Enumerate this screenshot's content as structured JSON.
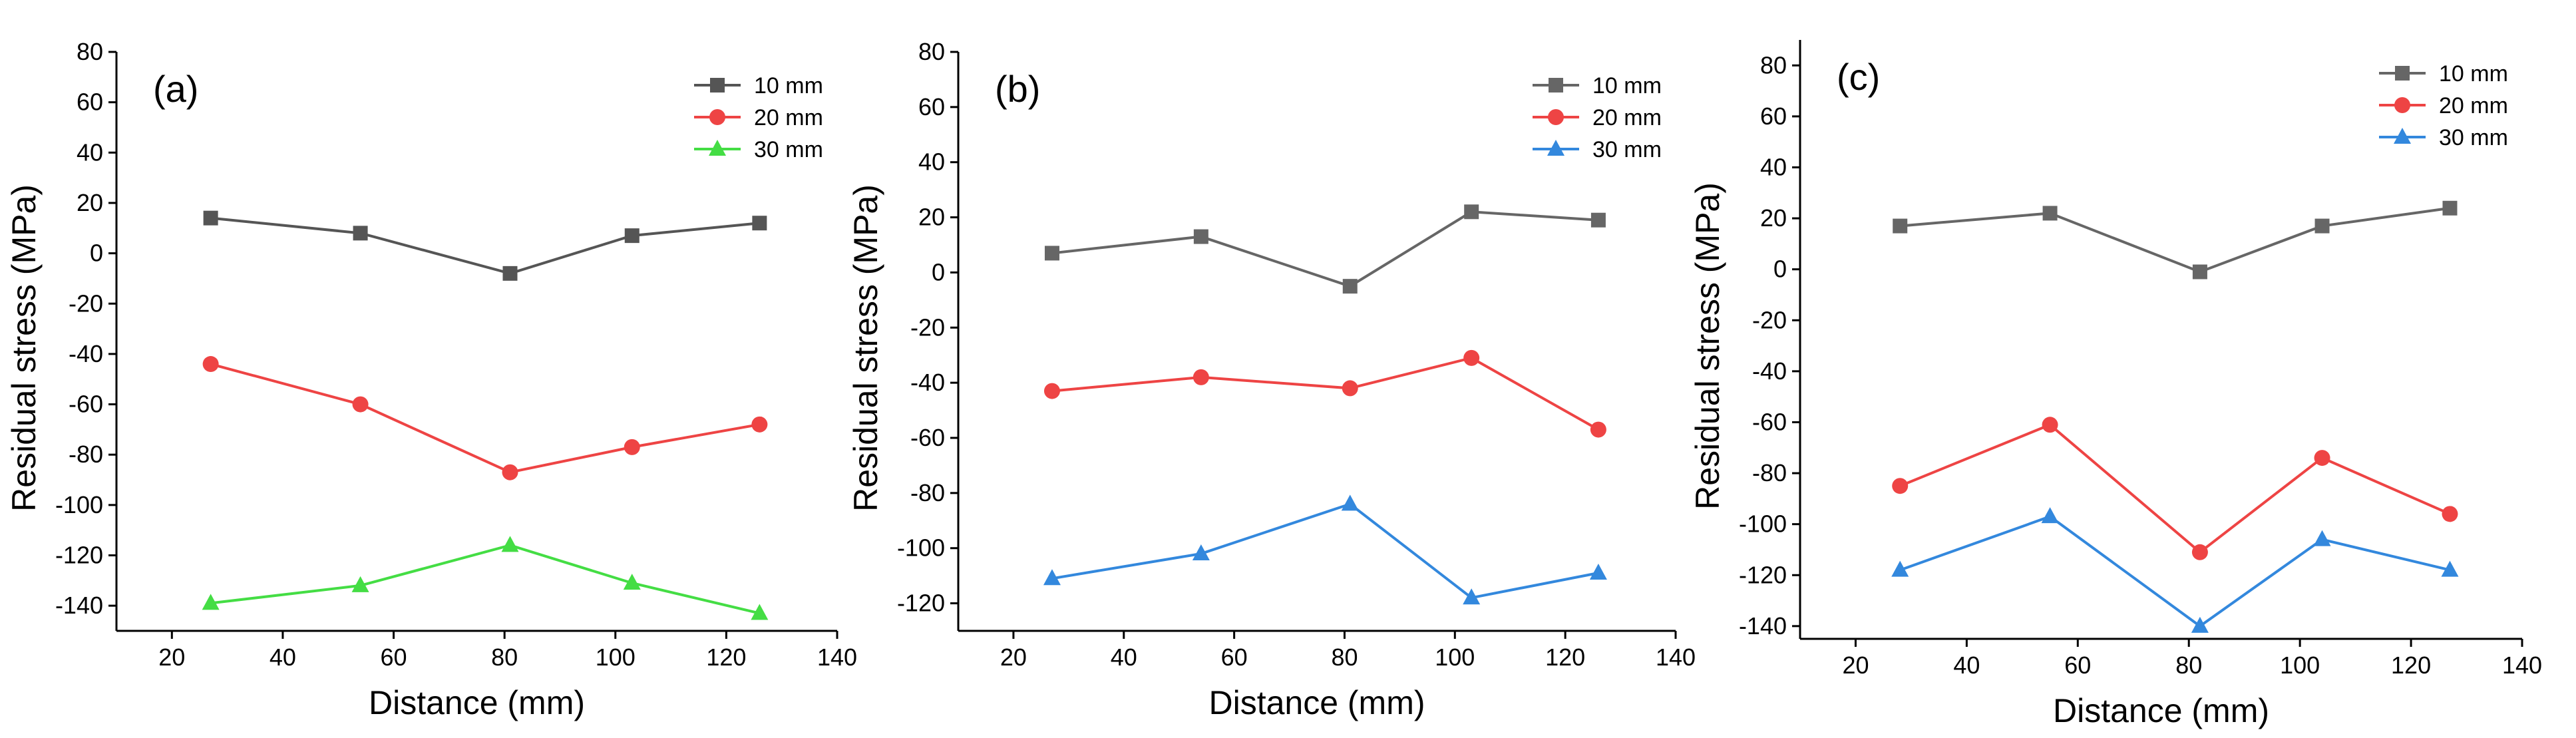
{
  "chart_data": [
    {
      "type": "line",
      "panel_label": "(a)",
      "xlabel": "Distance (mm)",
      "ylabel": "Residual stress (MPa)",
      "xlim": [
        10,
        140
      ],
      "ylim": [
        -150,
        80
      ],
      "xticks": [
        20,
        40,
        60,
        80,
        100,
        120,
        140
      ],
      "yticks": [
        -140,
        -120,
        -100,
        -80,
        -60,
        -40,
        -20,
        0,
        20,
        40,
        60,
        80
      ],
      "ytick_labels": [
        "-140",
        "-120",
        "-100",
        "-80",
        "-60",
        "-40",
        "-20",
        "0",
        "20",
        "40",
        "60",
        "80"
      ],
      "legend_position": "top-right",
      "series": [
        {
          "name": "10 mm",
          "color": "#555555",
          "marker": "square",
          "x": [
            27,
            54,
            81,
            103,
            126
          ],
          "y": [
            14,
            8,
            -8,
            7,
            12
          ]
        },
        {
          "name": "20 mm",
          "color": "#ee4444",
          "marker": "circle",
          "x": [
            27,
            54,
            81,
            103,
            126
          ],
          "y": [
            -44,
            -60,
            -87,
            -77,
            -68
          ]
        },
        {
          "name": "30 mm",
          "color": "#44dd44",
          "marker": "triangle",
          "x": [
            27,
            54,
            81,
            103,
            126
          ],
          "y": [
            -139,
            -132,
            -116,
            -131,
            -143
          ]
        }
      ]
    },
    {
      "type": "line",
      "panel_label": "(b)",
      "xlabel": "Distance (mm)",
      "ylabel": "Residual stress (MPa)",
      "xlim": [
        10,
        140
      ],
      "ylim": [
        -130,
        80
      ],
      "xticks": [
        20,
        40,
        60,
        80,
        100,
        120,
        140
      ],
      "yticks": [
        -120,
        -100,
        -80,
        -60,
        -40,
        -20,
        0,
        20,
        40,
        60,
        80
      ],
      "ytick_labels": [
        "-120",
        "-100",
        "-80",
        "-60",
        "-40",
        "-20",
        "0",
        "20",
        "40",
        "60",
        "80"
      ],
      "legend_position": "top-right",
      "series": [
        {
          "name": "10 mm",
          "color": "#666666",
          "marker": "square",
          "x": [
            27,
            54,
            81,
            103,
            126
          ],
          "y": [
            7,
            13,
            -5,
            22,
            19
          ]
        },
        {
          "name": "20 mm",
          "color": "#ee4444",
          "marker": "circle",
          "x": [
            27,
            54,
            81,
            103,
            126
          ],
          "y": [
            -43,
            -38,
            -42,
            -31,
            -57
          ]
        },
        {
          "name": "30 mm",
          "color": "#3388dd",
          "marker": "triangle",
          "x": [
            27,
            54,
            81,
            103,
            126
          ],
          "y": [
            -111,
            -102,
            -84,
            -118,
            -109
          ]
        }
      ]
    },
    {
      "type": "line",
      "panel_label": "(c)",
      "xlabel": "Distance (mm)",
      "ylabel": "Residual stress (MPa)",
      "xlim": [
        10,
        140
      ],
      "ylim": [
        -145,
        90
      ],
      "xticks": [
        20,
        40,
        60,
        80,
        100,
        120,
        140
      ],
      "yticks": [
        -140,
        -120,
        -100,
        -80,
        -60,
        -40,
        -20,
        0,
        20,
        40,
        60,
        80
      ],
      "ytick_labels": [
        "-140",
        "-120",
        "-100",
        "-80",
        "-60",
        "-40",
        "-20",
        "0",
        "20",
        "40",
        "60",
        "80"
      ],
      "legend_position": "top-right",
      "series": [
        {
          "name": "10 mm",
          "color": "#666666",
          "marker": "square",
          "x": [
            28,
            55,
            82,
            104,
            127
          ],
          "y": [
            17,
            22,
            -1,
            17,
            24
          ]
        },
        {
          "name": "20 mm",
          "color": "#ee4444",
          "marker": "circle",
          "x": [
            28,
            55,
            82,
            104,
            127
          ],
          "y": [
            -85,
            -61,
            -111,
            -74,
            -96
          ]
        },
        {
          "name": "30 mm",
          "color": "#3388dd",
          "marker": "triangle",
          "x": [
            28,
            55,
            82,
            104,
            127
          ],
          "y": [
            -118,
            -97,
            -140,
            -106,
            -118
          ]
        }
      ]
    }
  ]
}
